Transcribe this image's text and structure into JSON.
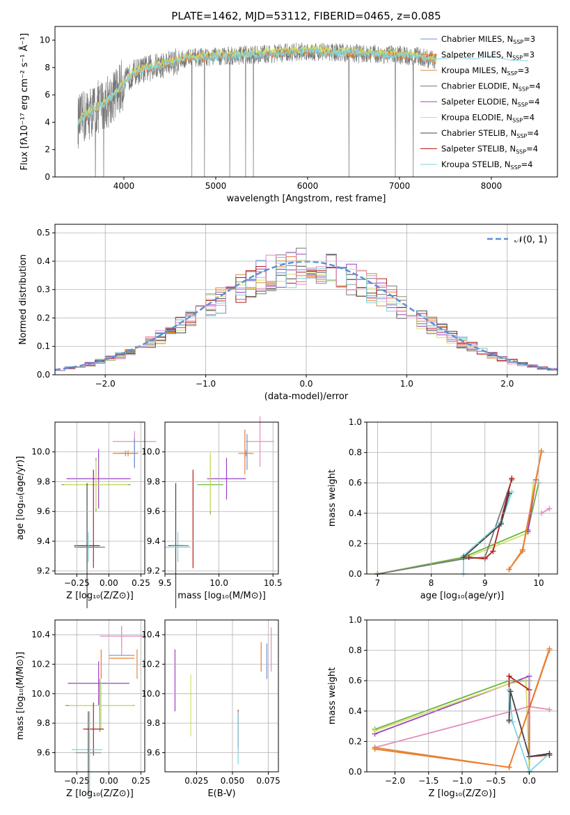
{
  "colors": {
    "chabrier_miles": "#6b8fd6",
    "salpeter_miles": "#f07a2b",
    "kroupa_miles": "#d98a3a",
    "chabrier_elodie": "#777777",
    "salpeter_elodie": "#9b3fc4",
    "kroupa_elodie": "#d3e06a",
    "chabrier_stelib": "#444444",
    "salpeter_stelib": "#b81c1c",
    "kroupa_stelib": "#7fd3e0",
    "pink": "#e48cc0",
    "green": "#6ab43c",
    "normal": "#5b8ed8"
  },
  "chart_data": [
    {
      "id": "spectrum",
      "type": "line",
      "title": "PLATE=1462, MJD=53112, FIBERID=0465, z=0.085",
      "xlabel": "wavelength [Angstrom, rest frame]",
      "ylabel": "Flux [fλ10⁻¹⁷ erg cm⁻² s⁻¹ Å⁻¹]",
      "xlim": [
        3250,
        8720
      ],
      "ylim": [
        0,
        11
      ],
      "xticks": [
        4000,
        5000,
        6000,
        7000,
        8000
      ],
      "yticks": [
        0,
        2,
        4,
        6,
        8,
        10
      ],
      "legend_position": "top-right",
      "legend": [
        {
          "label": "Chabrier MILES, N",
          "sub": "SSP",
          "suffix": "=3",
          "color_key": "chabrier_miles"
        },
        {
          "label": "Salpeter MILES, N",
          "sub": "SSP",
          "suffix": "=3",
          "color_key": "salpeter_miles"
        },
        {
          "label": "Kroupa MILES, N",
          "sub": "SSP",
          "suffix": "=3",
          "color_key": "kroupa_miles"
        },
        {
          "label": "Chabrier ELODIE, N",
          "sub": "SSP",
          "suffix": "=4",
          "color_key": "chabrier_elodie"
        },
        {
          "label": "Salpeter ELODIE, N",
          "sub": "SSP",
          "suffix": "=4",
          "color_key": "salpeter_elodie"
        },
        {
          "label": "Kroupa ELODIE, N",
          "sub": "SSP",
          "suffix": "=4",
          "color_key": "kroupa_elodie"
        },
        {
          "label": "Chabrier STELIB, N",
          "sub": "SSP",
          "suffix": "=4",
          "color_key": "chabrier_stelib"
        },
        {
          "label": "Salpeter STELIB, N",
          "sub": "SSP",
          "suffix": "=4",
          "color_key": "salpeter_stelib"
        },
        {
          "label": "Kroupa STELIB, N",
          "sub": "SSP",
          "suffix": "=4",
          "color_key": "kroupa_stelib"
        }
      ],
      "continuum": {
        "x": [
          3500,
          3650,
          3800,
          3900,
          4000,
          4100,
          4300,
          4500,
          4700,
          5000,
          5300,
          5600,
          6000,
          6300,
          6600,
          7000,
          7200,
          7400
        ],
        "y": [
          4.0,
          4.8,
          5.4,
          6.0,
          6.8,
          7.6,
          8.0,
          8.3,
          8.7,
          8.8,
          8.9,
          9.0,
          9.2,
          9.1,
          9.0,
          8.9,
          8.8,
          8.5
        ]
      },
      "model_extension": {
        "x": [
          7400,
          7600,
          7800,
          8000,
          8200,
          8400
        ],
        "y": [
          8.7,
          8.8,
          8.7,
          8.75,
          8.6,
          8.6
        ]
      }
    },
    {
      "id": "residuals",
      "type": "line",
      "xlabel": "(data-model)/error",
      "ylabel": "Normed distribution",
      "xlim": [
        -2.5,
        2.5
      ],
      "ylim": [
        0,
        0.53
      ],
      "xticks": [
        -2,
        -1,
        0,
        1,
        2
      ],
      "yticks": [
        0.0,
        0.1,
        0.2,
        0.3,
        0.4,
        0.5
      ],
      "legend_position": "top-right",
      "normal_label": "𝒩(0, 1)",
      "hist_bins": {
        "start": -2.5,
        "width": 0.1,
        "count": 50
      }
    },
    {
      "id": "age_vs_z",
      "type": "scatter",
      "xlabel": "Z [log₁₀(Z/Z⊙)]",
      "ylabel": "age  [log₁₀(age/yr)]",
      "xlim": [
        -0.42,
        0.28
      ],
      "ylim": [
        9.18,
        10.2
      ],
      "xticks": [
        -0.25,
        0.0,
        0.25
      ],
      "yticks": [
        9.2,
        9.4,
        9.6,
        9.8,
        10.0
      ],
      "points": [
        {
          "x": 0.2,
          "y": 10.07,
          "dx": 0.17,
          "dy": 0.07,
          "c": "pink"
        },
        {
          "x": 0.2,
          "y": 10.0,
          "dx": 0.0,
          "dy": 0.1,
          "c": "pink"
        },
        {
          "x": 0.13,
          "y": 9.99,
          "dx": 0.1,
          "dy": 0.02,
          "c": "salpeter_miles"
        },
        {
          "x": 0.15,
          "y": 9.99,
          "dx": 0.07,
          "dy": 0.02,
          "c": "kroupa_miles"
        },
        {
          "x": 0.2,
          "y": 9.99,
          "dx": 0.0,
          "dy": 0.1,
          "c": "chabrier_miles"
        },
        {
          "x": -0.08,
          "y": 9.82,
          "dx": 0.25,
          "dy": 0.2,
          "c": "salpeter_elodie"
        },
        {
          "x": -0.1,
          "y": 9.78,
          "dx": 0.27,
          "dy": 0.18,
          "c": "green"
        },
        {
          "x": -0.1,
          "y": 9.78,
          "dx": 0.25,
          "dy": 0.16,
          "c": "kroupa_elodie"
        },
        {
          "x": -0.12,
          "y": 9.55,
          "dx": 0.0,
          "dy": 0.33,
          "c": "salpeter_stelib"
        },
        {
          "x": -0.17,
          "y": 9.37,
          "dx": 0.1,
          "dy": 0.42,
          "c": "chabrier_stelib"
        },
        {
          "x": -0.16,
          "y": 9.36,
          "dx": 0.08,
          "dy": 0.1,
          "c": "kroupa_stelib"
        },
        {
          "x": -0.15,
          "y": 9.36,
          "dx": 0.12,
          "dy": 0.0,
          "c": "chabrier_elodie"
        }
      ]
    },
    {
      "id": "age_vs_mass",
      "type": "scatter",
      "xlabel": "mass [log₁₀(M/M⊙)]",
      "ylabel": "",
      "xlim": [
        9.5,
        10.55
      ],
      "ylim": [
        9.18,
        10.2
      ],
      "xticks": [
        9.5,
        10.0,
        10.5
      ],
      "yticks": [
        9.2,
        9.4,
        9.6,
        9.8,
        10.0
      ],
      "points": [
        {
          "x": 10.38,
          "y": 10.07,
          "dx": 0.13,
          "dy": 0.17,
          "c": "pink"
        },
        {
          "x": 10.24,
          "y": 10.0,
          "dx": 0.0,
          "dy": 0.15,
          "c": "salpeter_miles"
        },
        {
          "x": 10.25,
          "y": 9.99,
          "dx": 0.07,
          "dy": 0.02,
          "c": "kroupa_miles"
        },
        {
          "x": 10.26,
          "y": 10.0,
          "dx": 0.0,
          "dy": 0.12,
          "c": "chabrier_miles"
        },
        {
          "x": 10.07,
          "y": 9.82,
          "dx": 0.18,
          "dy": 0.14,
          "c": "salpeter_elodie"
        },
        {
          "x": 9.92,
          "y": 9.78,
          "dx": 0.12,
          "dy": 0.2,
          "c": "green"
        },
        {
          "x": 9.92,
          "y": 9.8,
          "dx": 0.0,
          "dy": 0.2,
          "c": "kroupa_elodie"
        },
        {
          "x": 9.76,
          "y": 9.55,
          "dx": 0.0,
          "dy": 0.33,
          "c": "salpeter_stelib"
        },
        {
          "x": 9.6,
          "y": 9.37,
          "dx": 0.07,
          "dy": 0.42,
          "c": "chabrier_stelib"
        },
        {
          "x": 9.62,
          "y": 9.36,
          "dx": 0.12,
          "dy": 0.1,
          "c": "kroupa_stelib"
        },
        {
          "x": 9.64,
          "y": 9.37,
          "dx": 0.08,
          "dy": 0.0,
          "c": "chabrier_elodie"
        }
      ]
    },
    {
      "id": "weight_vs_age",
      "type": "line",
      "xlabel": "age  [log₁₀(age/yr)]",
      "ylabel": "mass weight",
      "xlim": [
        6.8,
        10.35
      ],
      "ylim": [
        0,
        1.0
      ],
      "xticks": [
        7,
        8,
        9,
        10
      ],
      "yticks": [
        0.0,
        0.2,
        0.4,
        0.6,
        0.8,
        1.0
      ],
      "series": [
        {
          "c": "green",
          "x": [
            7.0,
            8.6,
            9.8,
            10.0
          ],
          "y": [
            0.0,
            0.11,
            0.29,
            0.6
          ]
        },
        {
          "c": "kroupa_elodie",
          "x": [
            7.0,
            8.6,
            9.8,
            9.9
          ],
          "y": [
            0.0,
            0.1,
            0.27,
            0.6
          ]
        },
        {
          "c": "chabrier_elodie",
          "x": [
            7.0,
            8.6,
            9.0,
            9.5
          ],
          "y": [
            0.0,
            0.1,
            0.11,
            0.62
          ]
        },
        {
          "c": "salpeter_stelib",
          "x": [
            8.7,
            9.0,
            9.15,
            9.5
          ],
          "y": [
            0.11,
            0.1,
            0.15,
            0.63
          ]
        },
        {
          "c": "kroupa_stelib",
          "x": [
            8.6,
            8.6,
            9.3,
            9.5
          ],
          "y": [
            0.0,
            0.12,
            0.34,
            0.54
          ]
        },
        {
          "c": "chabrier_stelib",
          "x": [
            8.6,
            9.3,
            9.45
          ],
          "y": [
            0.11,
            0.33,
            0.53
          ]
        },
        {
          "c": "salpeter_elodie",
          "x": [
            9.8,
            9.95
          ],
          "y": [
            0.28,
            0.62
          ]
        },
        {
          "c": "kroupa_miles",
          "x": [
            9.45,
            9.7,
            10.05
          ],
          "y": [
            0.03,
            0.16,
            0.81
          ]
        },
        {
          "c": "salpeter_miles",
          "x": [
            9.45,
            9.7,
            10.05
          ],
          "y": [
            0.03,
            0.15,
            0.8
          ]
        },
        {
          "c": "pink",
          "x": [
            10.05,
            10.2
          ],
          "y": [
            0.4,
            0.43
          ]
        }
      ]
    },
    {
      "id": "mass_vs_z",
      "type": "scatter",
      "xlabel": "Z [log₁₀(Z/Z⊙)]",
      "ylabel": "mass [log₁₀(M/M⊙)]",
      "xlim": [
        -0.42,
        0.28
      ],
      "ylim": [
        9.47,
        10.5
      ],
      "xticks": [
        -0.25,
        0.0,
        0.25
      ],
      "yticks": [
        9.6,
        9.8,
        10.0,
        10.2,
        10.4
      ],
      "points": [
        {
          "x": 0.1,
          "y": 10.39,
          "dx": 0.17,
          "dy": 0.07,
          "c": "pink"
        },
        {
          "x": 0.1,
          "y": 10.36,
          "dx": 0.0,
          "dy": 0.1,
          "c": "pink"
        },
        {
          "x": 0.1,
          "y": 10.26,
          "dx": 0.1,
          "dy": 0.0,
          "c": "chabrier_miles"
        },
        {
          "x": 0.1,
          "y": 10.24,
          "dx": 0.1,
          "dy": 0.0,
          "c": "salpeter_miles"
        },
        {
          "x": 0.22,
          "y": 10.2,
          "dx": 0.0,
          "dy": 0.1,
          "c": "kroupa_miles"
        },
        {
          "x": -0.06,
          "y": 10.2,
          "dx": 0.0,
          "dy": 0.1,
          "c": "salpeter_miles"
        },
        {
          "x": -0.08,
          "y": 10.07,
          "dx": 0.24,
          "dy": 0.15,
          "c": "salpeter_elodie"
        },
        {
          "x": -0.07,
          "y": 9.92,
          "dx": 0.27,
          "dy": 0.18,
          "c": "green"
        },
        {
          "x": -0.06,
          "y": 9.92,
          "dx": 0.25,
          "dy": 0.16,
          "c": "kroupa_elodie"
        },
        {
          "x": -0.12,
          "y": 9.76,
          "dx": 0.08,
          "dy": 0.18,
          "c": "salpeter_stelib"
        },
        {
          "x": -0.17,
          "y": 9.62,
          "dx": 0.12,
          "dy": 0.0,
          "c": "kroupa_stelib"
        },
        {
          "x": -0.16,
          "y": 9.6,
          "dx": 0.1,
          "dy": 0.28,
          "c": "chabrier_stelib"
        },
        {
          "x": -0.15,
          "y": 9.6,
          "dx": 0.0,
          "dy": 0.28,
          "c": "kroupa_stelib"
        }
      ]
    },
    {
      "id": "mass_vs_ebv",
      "type": "scatter",
      "xlabel": "E(B-V)",
      "ylabel": "",
      "xlim": [
        0.003,
        0.082
      ],
      "ylim": [
        9.47,
        10.5
      ],
      "xticks": [
        0.025,
        0.05,
        0.075
      ],
      "yticks": [
        9.6,
        9.8,
        10.0,
        10.2,
        10.4
      ],
      "points": [
        {
          "x": 0.01,
          "y": 10.09,
          "dx": 0.0,
          "dy": 0.21,
          "c": "salpeter_elodie"
        },
        {
          "x": 0.021,
          "y": 9.92,
          "dx": 0.0,
          "dy": 0.21,
          "c": "kroupa_elodie"
        },
        {
          "x": 0.054,
          "y": 9.76,
          "dx": 0.0,
          "dy": 0.13,
          "c": "salpeter_stelib"
        },
        {
          "x": 0.054,
          "y": 9.7,
          "dx": 0.0,
          "dy": 0.18,
          "c": "kroupa_stelib"
        },
        {
          "x": 0.07,
          "y": 10.25,
          "dx": 0.0,
          "dy": 0.1,
          "c": "salpeter_miles"
        },
        {
          "x": 0.074,
          "y": 10.22,
          "dx": 0.0,
          "dy": 0.12,
          "c": "chabrier_miles"
        },
        {
          "x": 0.077,
          "y": 10.3,
          "dx": 0.0,
          "dy": 0.15,
          "c": "pink"
        }
      ]
    },
    {
      "id": "weight_vs_z",
      "type": "line",
      "xlabel": "Z [log₁₀(Z/Z⊙)]",
      "ylabel": "mass weight",
      "xlim": [
        -2.42,
        0.42
      ],
      "ylim": [
        0,
        1.0
      ],
      "xticks": [
        -2.0,
        -1.5,
        -1.0,
        -0.5,
        0.0
      ],
      "yticks": [
        0.0,
        0.2,
        0.4,
        0.6,
        0.8,
        1.0
      ],
      "series": [
        {
          "c": "green",
          "x": [
            -2.3,
            -0.3,
            0.0,
            0.0
          ],
          "y": [
            0.28,
            0.6,
            0.6,
            0.0
          ]
        },
        {
          "c": "salpeter_elodie",
          "x": [
            -2.3,
            0.0,
            0.0
          ],
          "y": [
            0.25,
            0.63,
            0.1
          ]
        },
        {
          "c": "kroupa_elodie",
          "x": [
            -2.3,
            -0.3,
            -0.05,
            0.0
          ],
          "y": [
            0.27,
            0.58,
            0.6,
            0.0
          ]
        },
        {
          "c": "pink",
          "x": [
            -2.3,
            0.0,
            0.3
          ],
          "y": [
            0.16,
            0.43,
            0.41
          ]
        },
        {
          "c": "kroupa_miles",
          "x": [
            -2.3,
            -0.3,
            0.3
          ],
          "y": [
            0.16,
            0.03,
            0.81
          ]
        },
        {
          "c": "salpeter_miles",
          "x": [
            -2.3,
            -0.3,
            0.3
          ],
          "y": [
            0.15,
            0.03,
            0.8
          ]
        },
        {
          "c": "salpeter_stelib",
          "x": [
            -0.3,
            -0.3,
            0.0,
            0.0,
            0.3
          ],
          "y": [
            0.33,
            0.63,
            0.54,
            0.1,
            0.11
          ]
        },
        {
          "c": "kroupa_stelib",
          "x": [
            -0.3,
            -0.3,
            -0.25,
            0.0,
            0.3
          ],
          "y": [
            0.33,
            0.54,
            0.33,
            0.0,
            0.12
          ]
        },
        {
          "c": "chabrier_stelib",
          "x": [
            -0.3,
            -0.28,
            0.0,
            0.3
          ],
          "y": [
            0.34,
            0.53,
            0.1,
            0.12
          ]
        }
      ]
    }
  ]
}
